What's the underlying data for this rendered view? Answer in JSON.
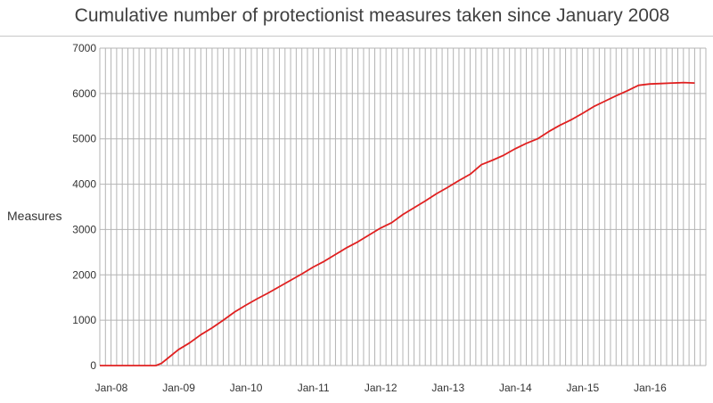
{
  "chart_data": {
    "type": "line",
    "title": "Cumulative number of protectionist measures taken since January 2008",
    "xlabel": "",
    "ylabel": "Measures",
    "ylim": [
      0,
      7000
    ],
    "yticks": [
      0,
      1000,
      2000,
      3000,
      4000,
      5000,
      6000,
      7000
    ],
    "xticks": [
      "Jan-08",
      "Jan-09",
      "Jan-10",
      "Jan-11",
      "Jan-12",
      "Jan-13",
      "Jan-14",
      "Jan-15",
      "Jan-16"
    ],
    "grid": true,
    "line_color": "#e02020",
    "series": [
      {
        "x": [
          "Jan-08",
          "Mar-08",
          "May-08",
          "Jul-08",
          "Sep-08",
          "Nov-08",
          "Dec-08",
          "Jan-09",
          "Mar-09",
          "May-09",
          "Jul-09",
          "Sep-09",
          "Nov-09",
          "Jan-10",
          "Mar-10",
          "May-10",
          "Jul-10",
          "Sep-10",
          "Nov-10",
          "Jan-11",
          "Mar-11",
          "May-11",
          "Jul-11",
          "Sep-11",
          "Nov-11",
          "Jan-12",
          "Mar-12",
          "May-12",
          "Jul-12",
          "Sep-12",
          "Nov-12",
          "Jan-13",
          "Mar-13",
          "May-13",
          "Jul-13",
          "Sep-13",
          "Nov-13",
          "Jan-14",
          "Mar-14",
          "May-14",
          "Jul-14",
          "Sep-14",
          "Nov-14",
          "Jan-15",
          "Mar-15",
          "May-15",
          "Jul-15",
          "Sep-15",
          "Nov-15",
          "Jan-16",
          "Mar-16",
          "May-16",
          "Jul-16",
          "Sep-16",
          "Nov-16"
        ],
        "values": [
          0,
          0,
          0,
          0,
          0,
          0,
          50,
          150,
          350,
          500,
          680,
          830,
          1000,
          1180,
          1330,
          1470,
          1600,
          1740,
          1880,
          2020,
          2170,
          2300,
          2450,
          2600,
          2730,
          2880,
          3030,
          3150,
          3330,
          3480,
          3630,
          3790,
          3930,
          4080,
          4220,
          4430,
          4530,
          4640,
          4780,
          4900,
          5000,
          5160,
          5300,
          5420,
          5560,
          5710,
          5830,
          5950,
          6060,
          6180,
          6210,
          6220,
          6230,
          6240,
          6230
        ]
      }
    ]
  }
}
